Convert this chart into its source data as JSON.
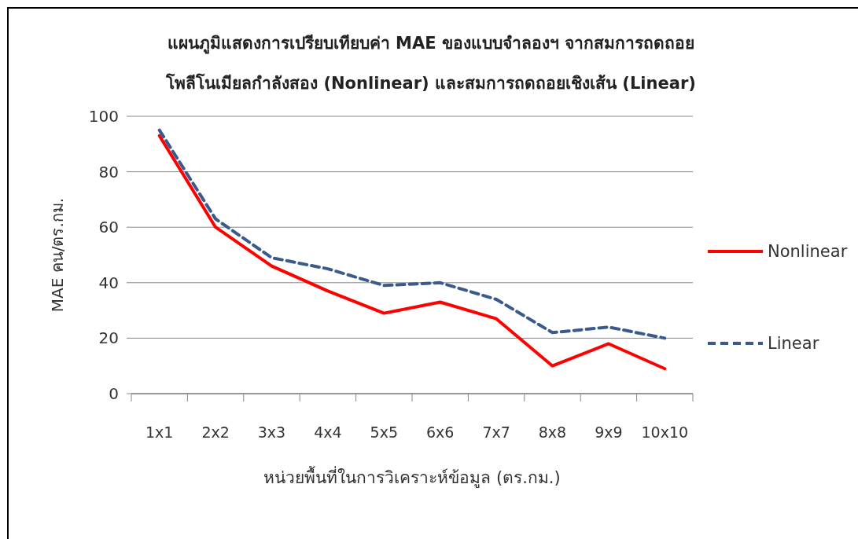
{
  "chart_data": {
    "type": "line",
    "title": "แผนภูมิแสดงการเปรียบเทียบค่า MAE ของแบบจำลองฯ จากสมการถดถอย",
    "subtitle": "โพลีโนเมียลกำลังสอง (Nonlinear) และสมการถดถอยเชิงเส้น (Linear)",
    "xlabel": "หน่วยพื้นที่ในการวิเคราะห์ข้อมูล (ตร.กม.)",
    "ylabel": "MAE คน/ตร.กม.",
    "categories": [
      "1x1",
      "2x2",
      "3x3",
      "4x4",
      "5x5",
      "6x6",
      "7x7",
      "8x8",
      "9x9",
      "10x10"
    ],
    "series": [
      {
        "name": "Nonlinear",
        "color": "#ff0000",
        "line_style": "solid",
        "values": [
          93,
          60,
          46,
          37,
          29,
          33,
          27,
          10,
          18,
          9
        ]
      },
      {
        "name": "Linear",
        "color": "#3a5a8c",
        "line_style": "dashed",
        "values": [
          95,
          63,
          49,
          45,
          39,
          40,
          34,
          22,
          24,
          20
        ]
      }
    ],
    "ylim": [
      0,
      100
    ],
    "yticks": [
      0,
      20,
      40,
      60,
      80,
      100
    ],
    "grid": "y",
    "legend": "right",
    "marker": "none"
  }
}
